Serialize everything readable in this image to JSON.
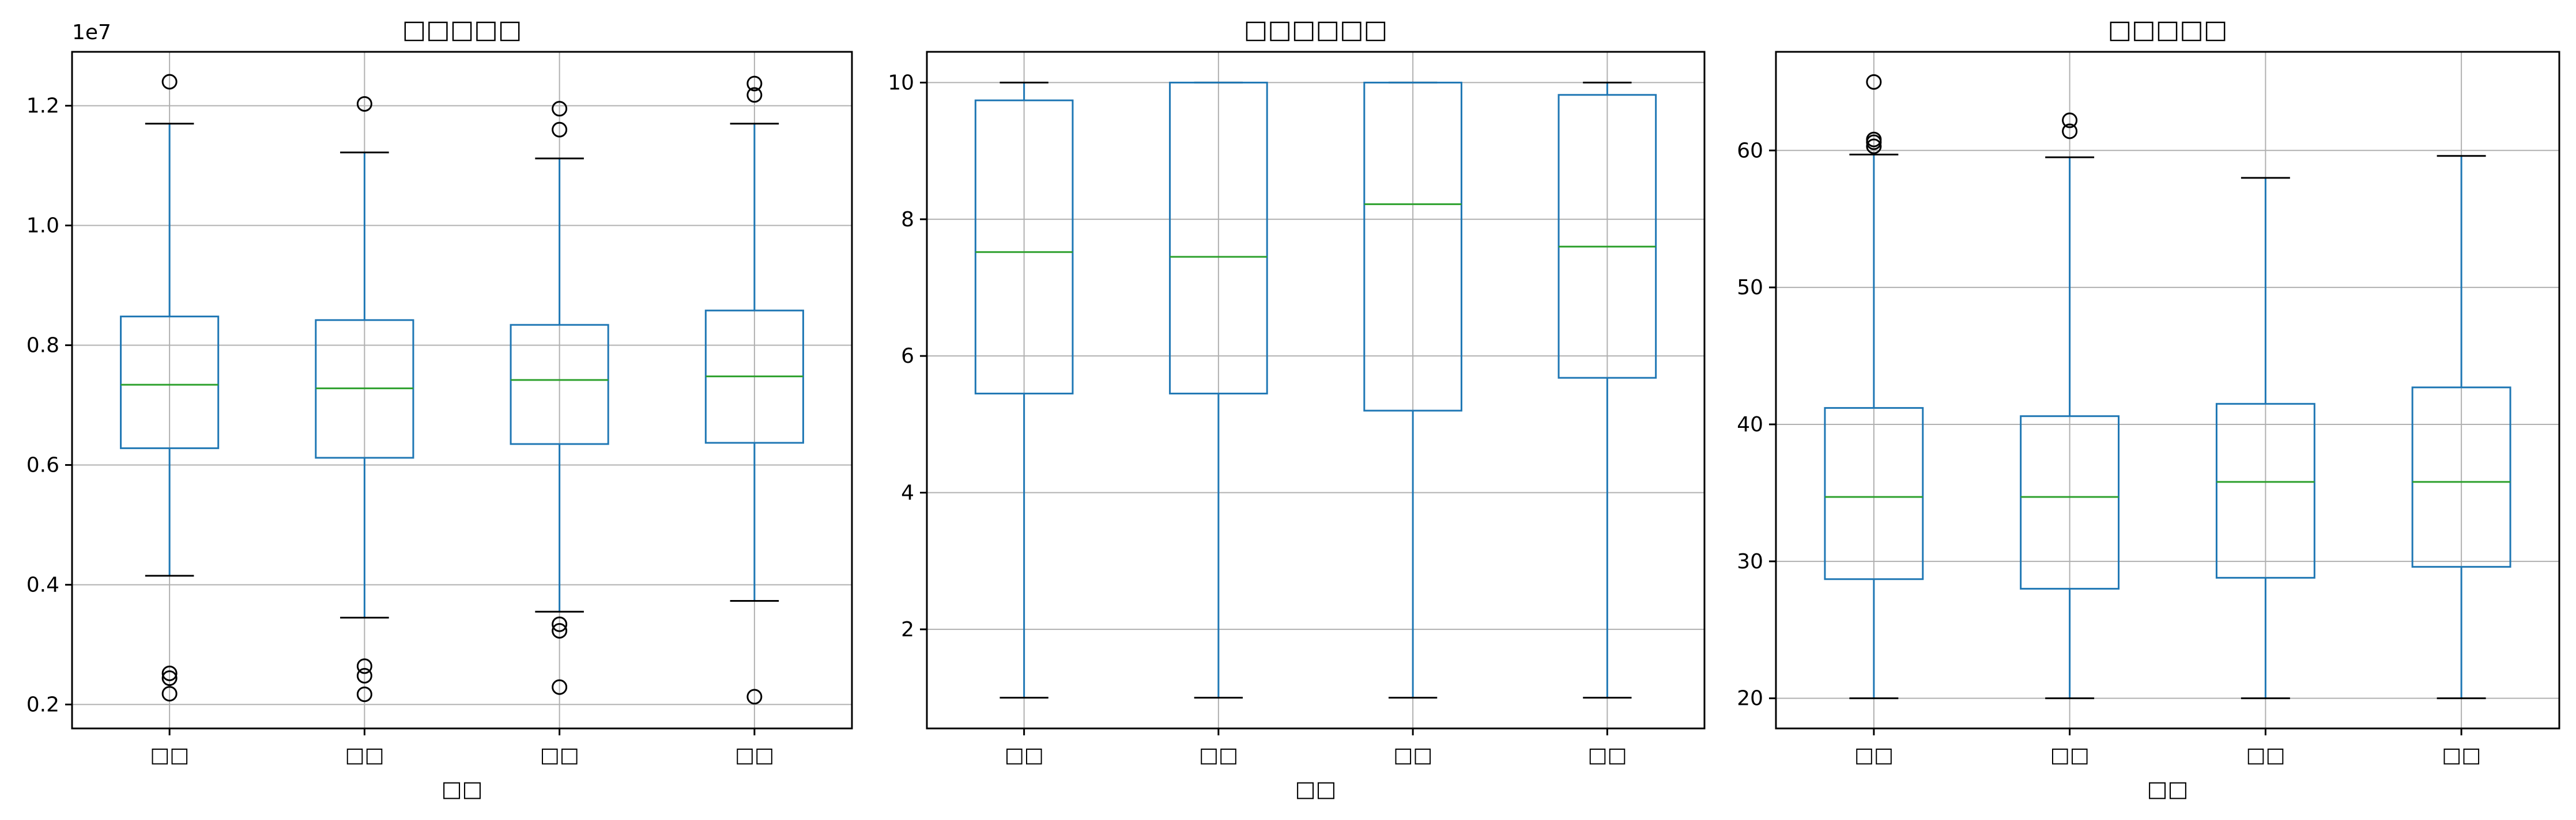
{
  "chart_data": [
    {
      "type": "box",
      "title": "□□□□□",
      "xlabel": "□□",
      "ylabel": "",
      "y_offset_label": "1e7",
      "ylim": [
        1600000,
        12900000
      ],
      "yticks": [
        2000000,
        4000000,
        6000000,
        8000000,
        10000000,
        12000000
      ],
      "ytick_labels": [
        "0.2",
        "0.4",
        "0.6",
        "0.8",
        "1.0",
        "1.2"
      ],
      "categories": [
        "□□",
        "□□",
        "□□",
        "□□"
      ],
      "grid": true,
      "boxes": [
        {
          "whisker_low": 4150000,
          "q1": 6280000,
          "median": 7340000,
          "q3": 8480000,
          "whisker_high": 11700000,
          "outliers": [
            12400000,
            2520000,
            2440000,
            2180000
          ]
        },
        {
          "whisker_low": 3450000,
          "q1": 6120000,
          "median": 7280000,
          "q3": 8420000,
          "whisker_high": 11220000,
          "outliers": [
            12030000,
            2640000,
            2480000,
            2170000
          ]
        },
        {
          "whisker_low": 3550000,
          "q1": 6350000,
          "median": 7420000,
          "q3": 8340000,
          "whisker_high": 11120000,
          "outliers": [
            11950000,
            11600000,
            3340000,
            3230000,
            2290000
          ]
        },
        {
          "whisker_low": 3730000,
          "q1": 6370000,
          "median": 7480000,
          "q3": 8580000,
          "whisker_high": 11700000,
          "outliers": [
            12370000,
            12180000,
            2130000
          ]
        }
      ]
    },
    {
      "type": "box",
      "title": "□□□□□□",
      "xlabel": "□□",
      "ylabel": "",
      "ylim": [
        0.55,
        10.45
      ],
      "yticks": [
        2,
        4,
        6,
        8,
        10
      ],
      "ytick_labels": [
        "2",
        "4",
        "6",
        "8",
        "10"
      ],
      "categories": [
        "□□",
        "□□",
        "□□",
        "□□"
      ],
      "grid": true,
      "boxes": [
        {
          "whisker_low": 1,
          "q1": 5.45,
          "median": 7.52,
          "q3": 9.74,
          "whisker_high": 10,
          "outliers": []
        },
        {
          "whisker_low": 1,
          "q1": 5.45,
          "median": 7.45,
          "q3": 10.0,
          "whisker_high": 10,
          "outliers": []
        },
        {
          "whisker_low": 1,
          "q1": 5.2,
          "median": 8.22,
          "q3": 10.0,
          "whisker_high": 10,
          "outliers": []
        },
        {
          "whisker_low": 1,
          "q1": 5.68,
          "median": 7.6,
          "q3": 9.82,
          "whisker_high": 10,
          "outliers": []
        }
      ]
    },
    {
      "type": "box",
      "title": "□□□□□",
      "xlabel": "□□",
      "ylabel": "",
      "ylim": [
        17.8,
        67.2
      ],
      "yticks": [
        20,
        30,
        40,
        50,
        60
      ],
      "ytick_labels": [
        "20",
        "30",
        "40",
        "50",
        "60"
      ],
      "categories": [
        "□□",
        "□□",
        "□□",
        "□□"
      ],
      "grid": true,
      "boxes": [
        {
          "whisker_low": 20,
          "q1": 28.7,
          "median": 34.7,
          "q3": 41.2,
          "whisker_high": 59.7,
          "outliers": [
            65.0,
            60.8,
            60.6,
            60.3
          ]
        },
        {
          "whisker_low": 20,
          "q1": 28.0,
          "median": 34.7,
          "q3": 40.6,
          "whisker_high": 59.5,
          "outliers": [
            62.2,
            61.4
          ]
        },
        {
          "whisker_low": 20,
          "q1": 28.8,
          "median": 35.8,
          "q3": 41.5,
          "whisker_high": 58.0,
          "outliers": []
        },
        {
          "whisker_low": 20,
          "q1": 29.6,
          "median": 35.8,
          "q3": 42.7,
          "whisker_high": 59.6,
          "outliers": []
        }
      ]
    }
  ],
  "colors": {
    "box": "#1f77b4",
    "median": "#2ca02c",
    "whisker_cap": "#000000",
    "outlier": "#000000",
    "grid": "#b0b0b0"
  }
}
